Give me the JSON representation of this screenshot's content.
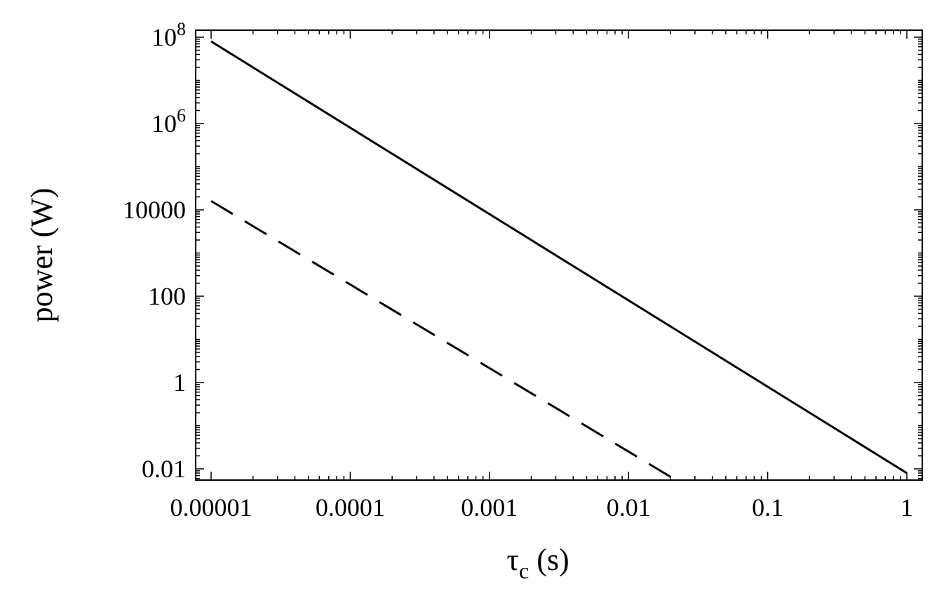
{
  "chart_data": {
    "type": "line",
    "xlabel": "τ_c (s)",
    "xlabel_main": "τ",
    "xlabel_sub": "c",
    "xlabel_unit": " (s)",
    "ylabel": "power (W)",
    "xscale": "log",
    "yscale": "log",
    "xlim": [
      1e-05,
      1
    ],
    "ylim": [
      0.005,
      100000000
    ],
    "grid": false,
    "x_ticks": [
      {
        "value": 1e-05,
        "label": "0.00001"
      },
      {
        "value": 0.0001,
        "label": "0.0001"
      },
      {
        "value": 0.001,
        "label": "0.001"
      },
      {
        "value": 0.01,
        "label": "0.01"
      },
      {
        "value": 0.1,
        "label": "0.1"
      },
      {
        "value": 1,
        "label": "1"
      }
    ],
    "y_ticks": [
      {
        "value": 100000000,
        "base": "10",
        "exp": "8"
      },
      {
        "value": 1000000,
        "base": "10",
        "exp": "6"
      },
      {
        "value": 10000,
        "label": "10000"
      },
      {
        "value": 100,
        "label": "100"
      },
      {
        "value": 1,
        "label": "1"
      },
      {
        "value": 0.01,
        "label": "0.01"
      }
    ],
    "series": [
      {
        "style": "solid",
        "color": "#000000",
        "x": [
          1e-05,
          1
        ],
        "y": [
          80000000,
          0.008
        ]
      },
      {
        "style": "dashed",
        "color": "#000000",
        "x": [
          1e-05,
          0.023
        ],
        "y": [
          16000,
          0.005
        ]
      }
    ]
  }
}
